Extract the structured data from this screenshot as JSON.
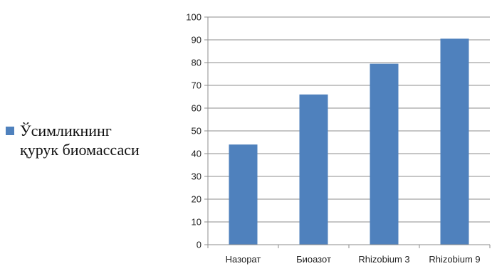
{
  "chart_data": {
    "type": "bar",
    "categories": [
      "Назорат",
      "Биоазот",
      "Rhizobium 3",
      "Rhizobium 9"
    ],
    "series": [
      {
        "name": "Ўсимликнинг қурук биомассаси",
        "values": [
          44,
          66,
          79.5,
          90.5
        ],
        "color": "#4F81BD"
      }
    ],
    "ylim": [
      0,
      100
    ],
    "yticks": [
      0,
      10,
      20,
      30,
      40,
      50,
      60,
      70,
      80,
      90,
      100
    ],
    "grid": true,
    "legend_position": "left"
  },
  "legend": {
    "line1": "Ўсимликнинг",
    "line2": "қурук биомассаси"
  }
}
